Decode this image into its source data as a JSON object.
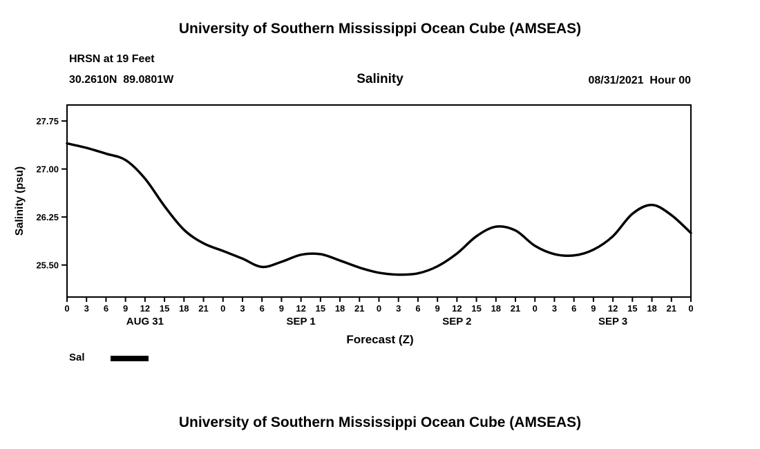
{
  "header": {
    "title_top": "University of Southern Mississippi Ocean Cube (AMSEAS)",
    "station": "HRSN at 19 Feet",
    "coords": "30.2610N  89.0801W",
    "plot_title": "Salinity",
    "run_time": "08/31/2021  Hour 00"
  },
  "footer": {
    "title_bottom": "University of Southern Mississippi Ocean Cube (AMSEAS)"
  },
  "legend": {
    "label": "Sal"
  },
  "colors": {
    "line": "#000000",
    "axis": "#000000",
    "background": "#ffffff"
  },
  "chart_data": {
    "type": "line",
    "title": "Salinity",
    "xlabel": "Forecast (Z)",
    "ylabel": "Salinity (psu)",
    "ylim": [
      25.0,
      28.0
    ],
    "x_max_hours": 96,
    "grid": false,
    "legend_position": "below-left",
    "yticks": [
      25.5,
      26.25,
      27.0,
      27.75
    ],
    "ytick_labels": [
      "25.50",
      "26.25",
      "27.00",
      "27.75"
    ],
    "x_hours": [
      0,
      3,
      6,
      9,
      12,
      15,
      18,
      21,
      24,
      27,
      30,
      33,
      36,
      39,
      42,
      45,
      48,
      51,
      54,
      57,
      60,
      63,
      66,
      69,
      72,
      75,
      78,
      81,
      84,
      87,
      90,
      93,
      96
    ],
    "xtick_labels": [
      "0",
      "3",
      "6",
      "9",
      "12",
      "15",
      "18",
      "21",
      "0",
      "3",
      "6",
      "9",
      "12",
      "15",
      "18",
      "21",
      "0",
      "3",
      "6",
      "9",
      "12",
      "15",
      "18",
      "21",
      "0",
      "3",
      "6",
      "9",
      "12",
      "15",
      "18",
      "21",
      "0"
    ],
    "day_labels": [
      {
        "label": "AUG 31",
        "hour": 12
      },
      {
        "label": "SEP 1",
        "hour": 36
      },
      {
        "label": "SEP 2",
        "hour": 60
      },
      {
        "label": "SEP 3",
        "hour": 84
      }
    ],
    "series": [
      {
        "name": "Sal",
        "color": "#000000",
        "width": 3.5,
        "x": [
          0,
          3,
          6,
          9,
          12,
          15,
          18,
          21,
          24,
          27,
          30,
          33,
          36,
          39,
          42,
          45,
          48,
          51,
          54,
          57,
          60,
          63,
          66,
          69,
          72,
          75,
          78,
          81,
          84,
          87,
          90,
          93,
          96
        ],
        "values": [
          27.4,
          27.33,
          27.24,
          27.14,
          26.85,
          26.42,
          26.05,
          25.84,
          25.72,
          25.6,
          25.47,
          25.55,
          25.66,
          25.67,
          25.57,
          25.46,
          25.38,
          25.35,
          25.37,
          25.48,
          25.68,
          25.95,
          26.1,
          26.04,
          25.8,
          25.67,
          25.65,
          25.74,
          25.95,
          26.3,
          26.44,
          26.28,
          26.0
        ]
      }
    ]
  }
}
